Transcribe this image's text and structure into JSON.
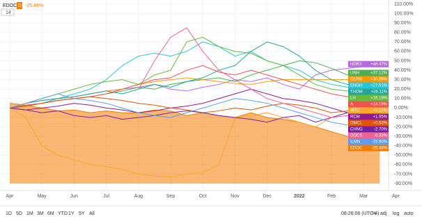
{
  "header": {
    "symbol": "EDOC",
    "interval": "D",
    "change": "-25.48%",
    "compare_count": "14"
  },
  "toolbar": {
    "ranges": [
      "1D",
      "5D",
      "1M",
      "3M",
      "6M",
      "YTD",
      "1Y",
      "5Y",
      "All"
    ],
    "time": "08:26:06 (UTC-4)",
    "percent": "%",
    "adj": "adj",
    "log": "log",
    "auto": "auto"
  },
  "chart_data": {
    "type": "line",
    "grid": true,
    "label_side": "right",
    "categories": [
      "Apr",
      null,
      "May",
      null,
      "Jun",
      null,
      "Jul",
      null,
      "Aug",
      null,
      "Sep",
      null,
      "Oct",
      null,
      "Nov",
      null,
      "Dec",
      null,
      "2022",
      null,
      "Feb",
      null,
      "Mar",
      null,
      "Apr"
    ],
    "ylim": [
      -80,
      110
    ],
    "yticks": [
      {
        "value": 110,
        "label": "110.00%"
      },
      {
        "value": 100,
        "label": "100.00%"
      },
      {
        "value": 90,
        "label": "90.00%"
      },
      {
        "value": 80,
        "label": "80.00%"
      },
      {
        "value": 70,
        "label": "70.00%"
      },
      {
        "value": 60,
        "label": "60.00%"
      },
      {
        "value": 50,
        "label": "50.00%"
      },
      {
        "value": 40,
        "label": "40.00%"
      },
      {
        "value": 30,
        "label": "30.00%"
      },
      {
        "value": 20,
        "label": "20.00%"
      },
      {
        "value": 10,
        "label": "10.00%"
      },
      {
        "value": 0,
        "label": "0.00%"
      },
      {
        "value": -10,
        "label": "-10.00%"
      },
      {
        "value": -20,
        "label": "-20.00%"
      },
      {
        "value": -30,
        "label": "-30.00%"
      },
      {
        "value": -40,
        "label": "-40.00%"
      },
      {
        "value": -50,
        "label": "-50.00%"
      },
      {
        "value": -60,
        "label": "-60.00%"
      },
      {
        "value": -70,
        "label": "-70.00%"
      },
      {
        "value": -80,
        "label": "-80.00%"
      }
    ],
    "series": [
      {
        "name": "EDOC",
        "color": "#f57c00",
        "area": true,
        "values": [
          5,
          3,
          0,
          -3,
          -2,
          -5,
          -3,
          -5,
          -5,
          -2,
          -3,
          -8,
          -5,
          -8,
          -10,
          -5,
          -10,
          -12,
          -15,
          -20,
          -25,
          -30,
          -28,
          -25.48,
          null
        ],
        "value_labels": [
          null,
          null,
          null,
          null,
          null,
          null,
          null,
          null,
          null,
          null,
          null,
          null,
          null,
          null,
          null,
          null,
          null,
          null,
          null,
          null,
          null,
          null,
          null,
          "-25.48%",
          null
        ]
      },
      {
        "name": "HDRX",
        "color": "#b36bdf",
        "values": [
          0,
          5,
          8,
          10,
          12,
          15,
          18,
          20,
          22,
          25,
          20,
          18,
          22,
          25,
          30,
          28,
          32,
          25,
          20,
          35,
          40,
          42,
          44,
          46.47,
          null
        ],
        "value_labels": [
          null,
          null,
          null,
          null,
          null,
          null,
          null,
          null,
          null,
          null,
          null,
          null,
          null,
          null,
          null,
          null,
          null,
          null,
          null,
          null,
          null,
          null,
          null,
          "+46.47%",
          null
        ]
      },
      {
        "name": "UNH",
        "color": "#4caf50",
        "values": [
          0,
          3,
          5,
          8,
          10,
          12,
          15,
          18,
          22,
          20,
          25,
          28,
          30,
          32,
          28,
          35,
          40,
          45,
          50,
          48,
          42,
          35,
          36,
          37.12,
          null
        ],
        "value_labels": [
          null,
          null,
          null,
          null,
          null,
          null,
          null,
          null,
          null,
          null,
          null,
          null,
          null,
          null,
          null,
          null,
          null,
          null,
          null,
          null,
          null,
          null,
          null,
          "+37.12%",
          null
        ]
      },
      {
        "name": "CERN",
        "color": "#ff9800",
        "values": [
          0,
          5,
          8,
          10,
          12,
          15,
          18,
          20,
          25,
          28,
          30,
          32,
          30,
          28,
          26,
          25,
          28,
          30,
          30,
          30,
          30,
          30,
          30,
          30.56,
          null
        ],
        "value_labels": [
          null,
          null,
          null,
          null,
          null,
          null,
          null,
          null,
          null,
          null,
          null,
          null,
          null,
          null,
          null,
          null,
          null,
          null,
          null,
          null,
          null,
          null,
          null,
          "+30.56%",
          null
        ]
      },
      {
        "name": "ENGH",
        "color": "#26c6da",
        "values": [
          0,
          2,
          5,
          10,
          15,
          20,
          30,
          45,
          55,
          58,
          55,
          60,
          70,
          65,
          55,
          60,
          50,
          45,
          40,
          30,
          25,
          22,
          25,
          27.61,
          null
        ],
        "value_labels": [
          null,
          null,
          null,
          null,
          null,
          null,
          null,
          null,
          null,
          null,
          null,
          null,
          null,
          null,
          null,
          null,
          null,
          null,
          null,
          null,
          null,
          null,
          null,
          "+27.61%",
          null
        ]
      },
      {
        "name": "THOM",
        "color": "#26a69a",
        "values": [
          0,
          5,
          8,
          10,
          12,
          15,
          18,
          15,
          20,
          25,
          22,
          28,
          32,
          40,
          45,
          60,
          70,
          65,
          55,
          40,
          30,
          25,
          28,
          26.11,
          null
        ],
        "value_labels": [
          null,
          null,
          null,
          null,
          null,
          null,
          null,
          null,
          null,
          null,
          null,
          null,
          null,
          null,
          null,
          null,
          null,
          null,
          null,
          null,
          null,
          null,
          null,
          "+26.11%",
          null
        ]
      },
      {
        "name": "LH",
        "color": "#66bb3a",
        "values": [
          0,
          5,
          10,
          15,
          20,
          25,
          28,
          30,
          25,
          35,
          40,
          70,
          75,
          65,
          60,
          58,
          50,
          45,
          35,
          25,
          20,
          18,
          17,
          16.19,
          null
        ],
        "value_labels": [
          null,
          null,
          null,
          null,
          null,
          null,
          null,
          null,
          null,
          null,
          null,
          null,
          null,
          null,
          null,
          null,
          null,
          null,
          null,
          null,
          null,
          null,
          null,
          "+16.19%",
          null
        ]
      },
      {
        "name": "A",
        "color": "#ef5350",
        "values": [
          0,
          3,
          5,
          8,
          10,
          12,
          15,
          20,
          25,
          30,
          32,
          40,
          45,
          38,
          35,
          40,
          35,
          30,
          25,
          20,
          15,
          12,
          15,
          14.19,
          null
        ],
        "value_labels": [
          null,
          null,
          null,
          null,
          null,
          null,
          null,
          null,
          null,
          null,
          null,
          null,
          null,
          null,
          null,
          null,
          null,
          null,
          null,
          null,
          null,
          null,
          null,
          "+14.19%",
          null
        ]
      },
      {
        "name": "IRTC",
        "color": "#ffa726",
        "values": [
          0,
          -10,
          -40,
          -50,
          -55,
          -60,
          -62,
          -65,
          -70,
          -72,
          -73,
          -70,
          -68,
          -60,
          -10,
          -8,
          -5,
          -10,
          -15,
          -20,
          -10,
          -5,
          0,
          3.22,
          null
        ],
        "value_labels": [
          null,
          null,
          null,
          null,
          null,
          null,
          null,
          null,
          null,
          null,
          null,
          null,
          null,
          null,
          null,
          null,
          null,
          null,
          null,
          null,
          null,
          null,
          null,
          "+3.22%",
          null
        ]
      },
      {
        "name": "RCM",
        "color": "#8e1a8e",
        "values": [
          0,
          -2,
          0,
          2,
          5,
          3,
          0,
          -2,
          -5,
          -3,
          0,
          2,
          5,
          10,
          15,
          20,
          15,
          10,
          8,
          5,
          0,
          -5,
          0,
          1.95,
          null
        ],
        "value_labels": [
          null,
          null,
          null,
          null,
          null,
          null,
          null,
          null,
          null,
          null,
          null,
          null,
          null,
          null,
          null,
          null,
          null,
          null,
          null,
          null,
          null,
          null,
          null,
          "+1.95%",
          null
        ]
      },
      {
        "name": "OMCL",
        "color": "#e65100",
        "values": [
          0,
          2,
          5,
          8,
          10,
          12,
          10,
          8,
          5,
          3,
          0,
          -2,
          -5,
          -3,
          0,
          -2,
          2,
          5,
          3,
          0,
          -5,
          -3,
          0,
          0.53,
          null
        ],
        "value_labels": [
          null,
          null,
          null,
          null,
          null,
          null,
          null,
          null,
          null,
          null,
          null,
          null,
          null,
          null,
          null,
          null,
          null,
          null,
          null,
          null,
          null,
          null,
          null,
          "+0.53%",
          null
        ]
      },
      {
        "name": "CHNG",
        "color": "#7b1fa2",
        "values": [
          0,
          -2,
          -5,
          -3,
          -8,
          -10,
          -8,
          -12,
          -10,
          -8,
          -5,
          -3,
          -5,
          -8,
          -10,
          -12,
          -15,
          -10,
          -8,
          -15,
          -10,
          -5,
          -3,
          -2.7,
          null
        ],
        "value_labels": [
          null,
          null,
          null,
          null,
          null,
          null,
          null,
          null,
          null,
          null,
          null,
          null,
          null,
          null,
          null,
          null,
          null,
          null,
          null,
          null,
          null,
          null,
          null,
          "-2.70%",
          null
        ]
      },
      {
        "name": "DOCS",
        "color": "#f06292",
        "values": [
          null,
          null,
          null,
          null,
          null,
          null,
          null,
          null,
          20,
          50,
          75,
          85,
          60,
          40,
          30,
          20,
          10,
          5,
          0,
          -5,
          -10,
          -8,
          -5,
          -6.33,
          null
        ],
        "value_labels": [
          null,
          null,
          null,
          null,
          null,
          null,
          null,
          null,
          null,
          null,
          null,
          null,
          null,
          null,
          null,
          null,
          null,
          null,
          null,
          null,
          null,
          null,
          null,
          "-6.33%",
          null
        ]
      },
      {
        "name": "ILMN",
        "color": "#5c9ded",
        "values": [
          0,
          5,
          10,
          15,
          10,
          8,
          5,
          0,
          -5,
          -8,
          -10,
          -5,
          0,
          5,
          10,
          8,
          5,
          0,
          -5,
          -10,
          -15,
          -18,
          -16,
          -15.9,
          null
        ],
        "value_labels": [
          null,
          null,
          null,
          null,
          null,
          null,
          null,
          null,
          null,
          null,
          null,
          null,
          null,
          null,
          null,
          null,
          null,
          null,
          null,
          null,
          null,
          null,
          null,
          "-15.90%",
          null
        ]
      }
    ]
  }
}
